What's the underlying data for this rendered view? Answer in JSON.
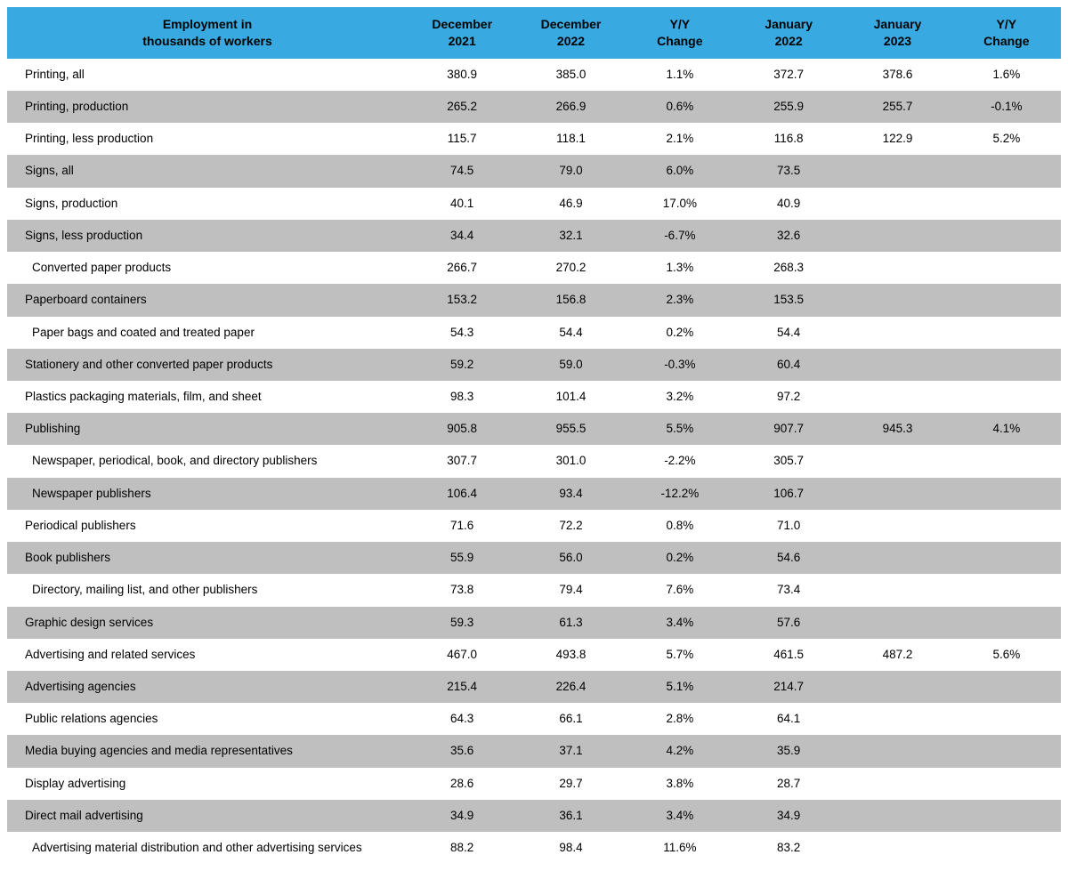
{
  "table": {
    "header_bg": "#38aae1",
    "row_gray": "#bfbfbf",
    "row_white": "#ffffff",
    "columns": [
      "Employment in\nthousands of workers",
      "December\n2021",
      "December\n2022",
      "Y/Y\nChange",
      "January\n2022",
      "January\n2023",
      "Y/Y\nChange"
    ],
    "rows": [
      {
        "band": "white",
        "indent": 0,
        "label": "Printing, all",
        "cells": [
          "380.9",
          "385.0",
          "1.1%",
          "372.7",
          "378.6",
          "1.6%"
        ]
      },
      {
        "band": "gray",
        "indent": 0,
        "label": "Printing, production",
        "cells": [
          "265.2",
          "266.9",
          "0.6%",
          "255.9",
          "255.7",
          "-0.1%"
        ]
      },
      {
        "band": "white",
        "indent": 0,
        "label": "Printing, less production",
        "cells": [
          "115.7",
          "118.1",
          "2.1%",
          "116.8",
          "122.9",
          "5.2%"
        ]
      },
      {
        "band": "gray",
        "indent": 0,
        "label": "Signs, all",
        "cells": [
          "74.5",
          "79.0",
          "6.0%",
          "73.5",
          "",
          ""
        ]
      },
      {
        "band": "white",
        "indent": 0,
        "label": "Signs, production",
        "cells": [
          "40.1",
          "46.9",
          "17.0%",
          "40.9",
          "",
          ""
        ]
      },
      {
        "band": "gray",
        "indent": 0,
        "label": "Signs, less production",
        "cells": [
          "34.4",
          "32.1",
          "-6.7%",
          "32.6",
          "",
          ""
        ]
      },
      {
        "band": "white",
        "indent": 1,
        "label": "Converted paper products",
        "cells": [
          "266.7",
          "270.2",
          "1.3%",
          "268.3",
          "",
          ""
        ]
      },
      {
        "band": "gray",
        "indent": 0,
        "label": "Paperboard containers",
        "cells": [
          "153.2",
          "156.8",
          "2.3%",
          "153.5",
          "",
          ""
        ]
      },
      {
        "band": "white",
        "indent": 1,
        "label": "Paper bags and coated and treated paper",
        "cells": [
          "54.3",
          "54.4",
          "0.2%",
          "54.4",
          "",
          ""
        ]
      },
      {
        "band": "gray",
        "indent": 0,
        "label": "Stationery and other converted paper products",
        "cells": [
          "59.2",
          "59.0",
          "-0.3%",
          "60.4",
          "",
          ""
        ]
      },
      {
        "band": "white",
        "indent": 0,
        "label": "Plastics packaging materials, film, and sheet",
        "cells": [
          "98.3",
          "101.4",
          "3.2%",
          "97.2",
          "",
          ""
        ]
      },
      {
        "band": "gray",
        "indent": 0,
        "label": "Publishing",
        "cells": [
          "905.8",
          "955.5",
          "5.5%",
          "907.7",
          "945.3",
          "4.1%"
        ]
      },
      {
        "band": "white",
        "indent": 1,
        "label": "Newspaper, periodical, book, and directory publishers",
        "cells": [
          "307.7",
          "301.0",
          "-2.2%",
          "305.7",
          "",
          ""
        ]
      },
      {
        "band": "gray",
        "indent": 1,
        "label": "Newspaper publishers",
        "cells": [
          "106.4",
          "93.4",
          "-12.2%",
          "106.7",
          "",
          ""
        ]
      },
      {
        "band": "white",
        "indent": 0,
        "label": "Periodical publishers",
        "cells": [
          "71.6",
          "72.2",
          "0.8%",
          "71.0",
          "",
          ""
        ]
      },
      {
        "band": "gray",
        "indent": 0,
        "label": "Book publishers",
        "cells": [
          "55.9",
          "56.0",
          "0.2%",
          "54.6",
          "",
          ""
        ]
      },
      {
        "band": "white",
        "indent": 1,
        "label": "Directory, mailing list, and other publishers",
        "cells": [
          "73.8",
          "79.4",
          "7.6%",
          "73.4",
          "",
          ""
        ]
      },
      {
        "band": "gray",
        "indent": 0,
        "label": "Graphic design services",
        "cells": [
          "59.3",
          "61.3",
          "3.4%",
          "57.6",
          "",
          ""
        ]
      },
      {
        "band": "white",
        "indent": 0,
        "label": "Advertising and related services",
        "cells": [
          "467.0",
          "493.8",
          "5.7%",
          "461.5",
          "487.2",
          "5.6%"
        ]
      },
      {
        "band": "gray",
        "indent": 0,
        "label": "Advertising agencies",
        "cells": [
          "215.4",
          "226.4",
          "5.1%",
          "214.7",
          "",
          ""
        ]
      },
      {
        "band": "white",
        "indent": 0,
        "label": "Public relations agencies",
        "cells": [
          "64.3",
          "66.1",
          "2.8%",
          "64.1",
          "",
          ""
        ]
      },
      {
        "band": "gray",
        "indent": 0,
        "label": "Media buying agencies and media representatives",
        "cells": [
          "35.6",
          "37.1",
          "4.2%",
          "35.9",
          "",
          ""
        ]
      },
      {
        "band": "white",
        "indent": 0,
        "label": "Display advertising",
        "cells": [
          "28.6",
          "29.7",
          "3.8%",
          "28.7",
          "",
          ""
        ]
      },
      {
        "band": "gray",
        "indent": 0,
        "label": "Direct mail advertising",
        "cells": [
          "34.9",
          "36.1",
          "3.4%",
          "34.9",
          "",
          ""
        ]
      },
      {
        "band": "white",
        "indent": 1,
        "label": "Advertising material distribution and other advertising services",
        "cells": [
          "88.2",
          "98.4",
          "11.6%",
          "83.2",
          "",
          ""
        ]
      }
    ]
  }
}
